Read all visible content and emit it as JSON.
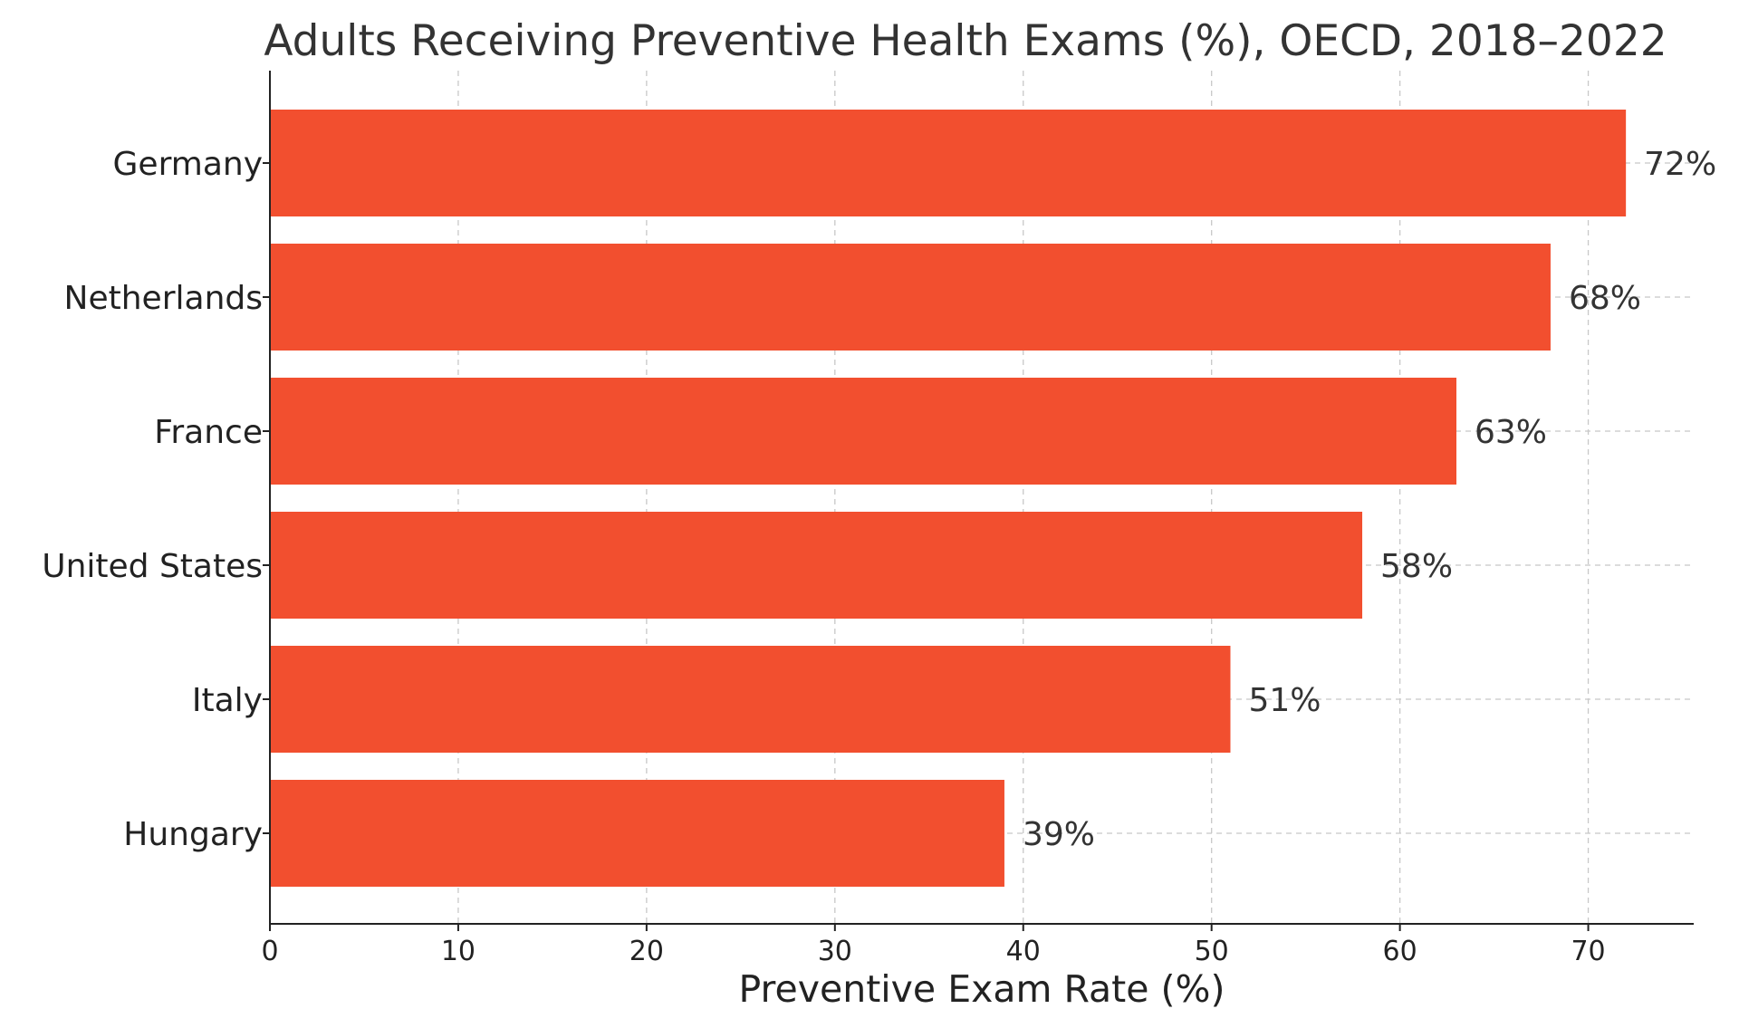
{
  "chart_data": {
    "type": "bar",
    "orientation": "horizontal",
    "title": "Adults Receiving Preventive Health Exams (%), OECD, 2018–2022",
    "xlabel": "Preventive Exam Rate (%)",
    "ylabel": "",
    "categories": [
      "Germany",
      "Netherlands",
      "France",
      "United States",
      "Italy",
      "Hungary"
    ],
    "values": [
      72,
      68,
      63,
      58,
      51,
      39
    ],
    "data_labels": [
      "72%",
      "68%",
      "63%",
      "58%",
      "51%",
      "39%"
    ],
    "xticks": [
      0,
      10,
      20,
      30,
      40,
      50,
      60,
      70
    ],
    "xtick_labels": [
      "0",
      "10",
      "20",
      "30",
      "40",
      "50",
      "60",
      "70"
    ],
    "xlim": [
      0,
      75.6
    ],
    "grid": true,
    "bar_color": "#f24f2f"
  }
}
